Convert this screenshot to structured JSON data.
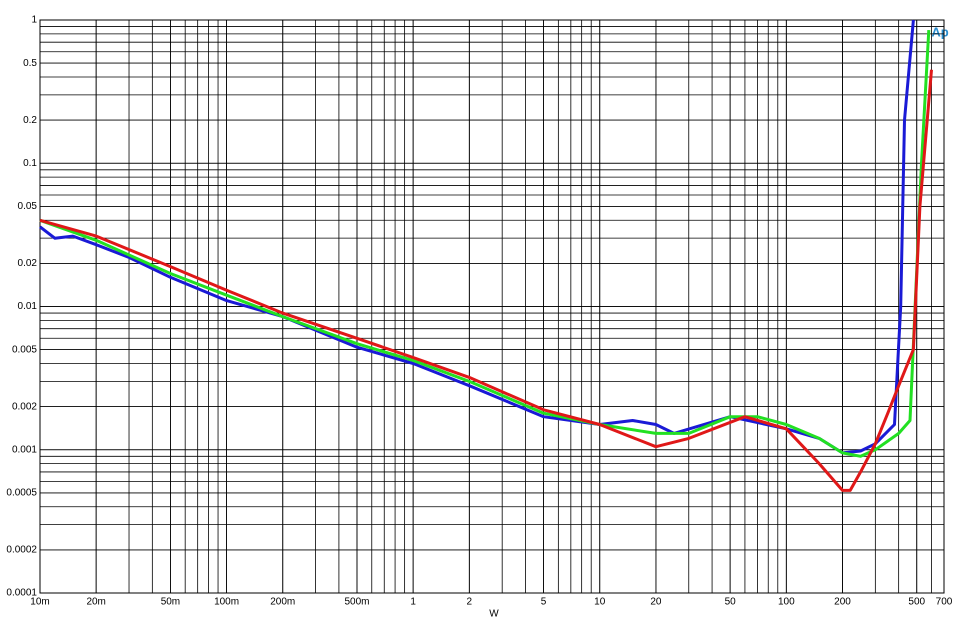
{
  "chart_data": {
    "type": "line",
    "x_label": "W",
    "logo": "Ap",
    "xlog": true,
    "ylog": true,
    "grid": true,
    "xlim": [
      0.01,
      700
    ],
    "ylim": [
      0.0001,
      1
    ],
    "xticks": [
      {
        "value": 0.01,
        "label": "10m"
      },
      {
        "value": 0.02,
        "label": "20m"
      },
      {
        "value": 0.05,
        "label": "50m"
      },
      {
        "value": 0.1,
        "label": "100m"
      },
      {
        "value": 0.2,
        "label": "200m"
      },
      {
        "value": 0.5,
        "label": "500m"
      },
      1,
      2,
      5,
      10,
      20,
      50,
      100,
      200,
      500,
      700
    ],
    "yticks": [
      1,
      0.5,
      0.2,
      0.1,
      0.05,
      0.02,
      0.01,
      0.005,
      0.002,
      0.001,
      0.0005,
      0.0002,
      0.0001
    ],
    "series": [
      {
        "name": "Blue",
        "color": "#1a1ad6",
        "x": [
          0.01,
          0.012,
          0.015,
          0.02,
          0.03,
          0.05,
          0.1,
          0.2,
          0.5,
          1,
          2,
          5,
          10,
          15,
          20,
          25,
          50,
          100,
          150,
          200,
          250,
          300,
          380,
          410,
          430,
          480
        ],
        "values": [
          0.036,
          0.03,
          0.031,
          0.027,
          0.022,
          0.016,
          0.011,
          0.0085,
          0.0052,
          0.004,
          0.0028,
          0.0017,
          0.0015,
          0.0016,
          0.0015,
          0.0013,
          0.0017,
          0.0014,
          0.0012,
          0.00095,
          0.00098,
          0.0011,
          0.0015,
          0.01,
          0.2,
          1
        ]
      },
      {
        "name": "Green",
        "color": "#22e022",
        "x": [
          0.01,
          0.02,
          0.05,
          0.1,
          0.2,
          0.5,
          1,
          2,
          5,
          10,
          20,
          30,
          50,
          70,
          100,
          150,
          200,
          250,
          300,
          400,
          460,
          490,
          530,
          580
        ],
        "values": [
          0.04,
          0.029,
          0.017,
          0.012,
          0.0085,
          0.0055,
          0.0042,
          0.003,
          0.0018,
          0.0015,
          0.0013,
          0.0013,
          0.0017,
          0.0017,
          0.0015,
          0.0012,
          0.00095,
          0.0009,
          0.001,
          0.0013,
          0.0016,
          0.01,
          0.1,
          0.85
        ]
      },
      {
        "name": "Red",
        "color": "#e01818",
        "x": [
          0.01,
          0.02,
          0.05,
          0.1,
          0.2,
          0.5,
          1,
          2,
          5,
          10,
          20,
          30,
          60,
          100,
          150,
          200,
          220,
          250,
          300,
          350,
          400,
          480,
          520,
          600
        ],
        "values": [
          0.04,
          0.031,
          0.019,
          0.013,
          0.009,
          0.006,
          0.0044,
          0.0032,
          0.0019,
          0.0015,
          0.00105,
          0.0012,
          0.0017,
          0.0014,
          0.0008,
          0.00052,
          0.00052,
          0.0007,
          0.0011,
          0.0018,
          0.0028,
          0.005,
          0.05,
          0.45
        ]
      }
    ]
  }
}
